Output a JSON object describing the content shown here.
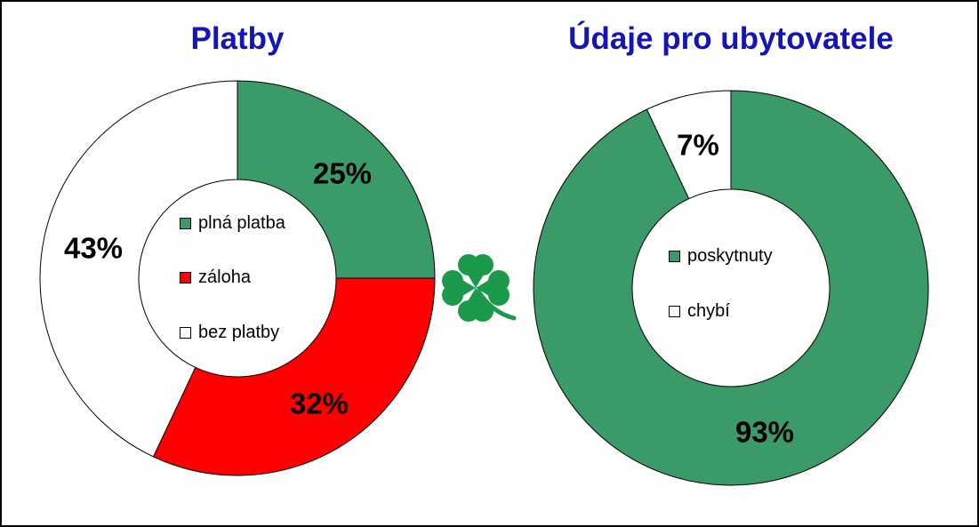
{
  "chart_data": [
    {
      "type": "pie",
      "title": "Platby",
      "categories": [
        "plná platba",
        "záloha",
        "bez platby"
      ],
      "values": [
        25,
        32,
        43
      ],
      "value_labels": [
        "25%",
        "32%",
        "43%"
      ],
      "colors": [
        "#3a9a68",
        "#ff0000",
        "#ffffff"
      ],
      "legend": "center"
    },
    {
      "type": "pie",
      "title": "Údaje pro ubytovatele",
      "categories": [
        "poskytnuty",
        "chybí"
      ],
      "values": [
        93,
        7
      ],
      "value_labels": [
        "93%",
        "7%"
      ],
      "colors": [
        "#3a9a68",
        "#ffffff"
      ],
      "legend": "center"
    }
  ],
  "decoration": {
    "icon": "four-leaf-clover-icon",
    "color": "#1a9a4a"
  }
}
